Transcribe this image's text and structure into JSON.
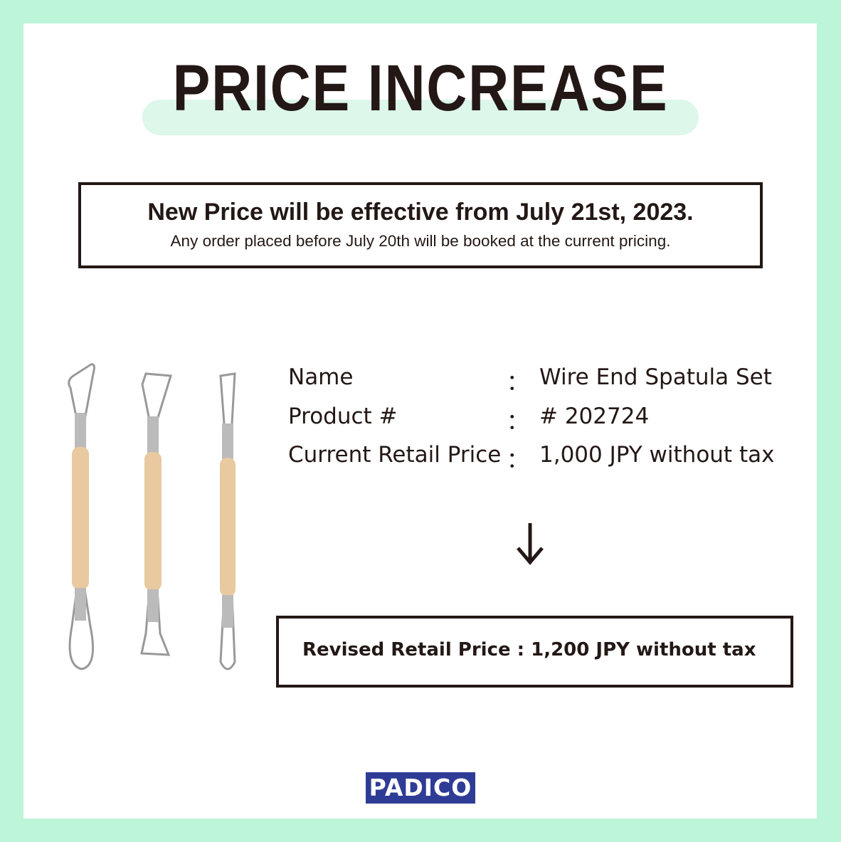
{
  "header": {
    "title": "PRICE INCREASE"
  },
  "notice": {
    "headline": "New Price will be effective from July 21st, 2023.",
    "note": "Any order placed before July 20th will be booked at the current pricing."
  },
  "product": {
    "rows": [
      {
        "label": "Name",
        "separator": "：",
        "value": "Wire End Spatula Set"
      },
      {
        "label": "Product #",
        "separator": "：",
        "value": "# 202724"
      },
      {
        "label": "Current Retail Price",
        "separator": "：",
        "value": "1,000 JPY without tax"
      }
    ]
  },
  "revised": {
    "text": "Revised Retail Price :  1,200 JPY without tax"
  },
  "logo": {
    "text": "PADICO"
  }
}
